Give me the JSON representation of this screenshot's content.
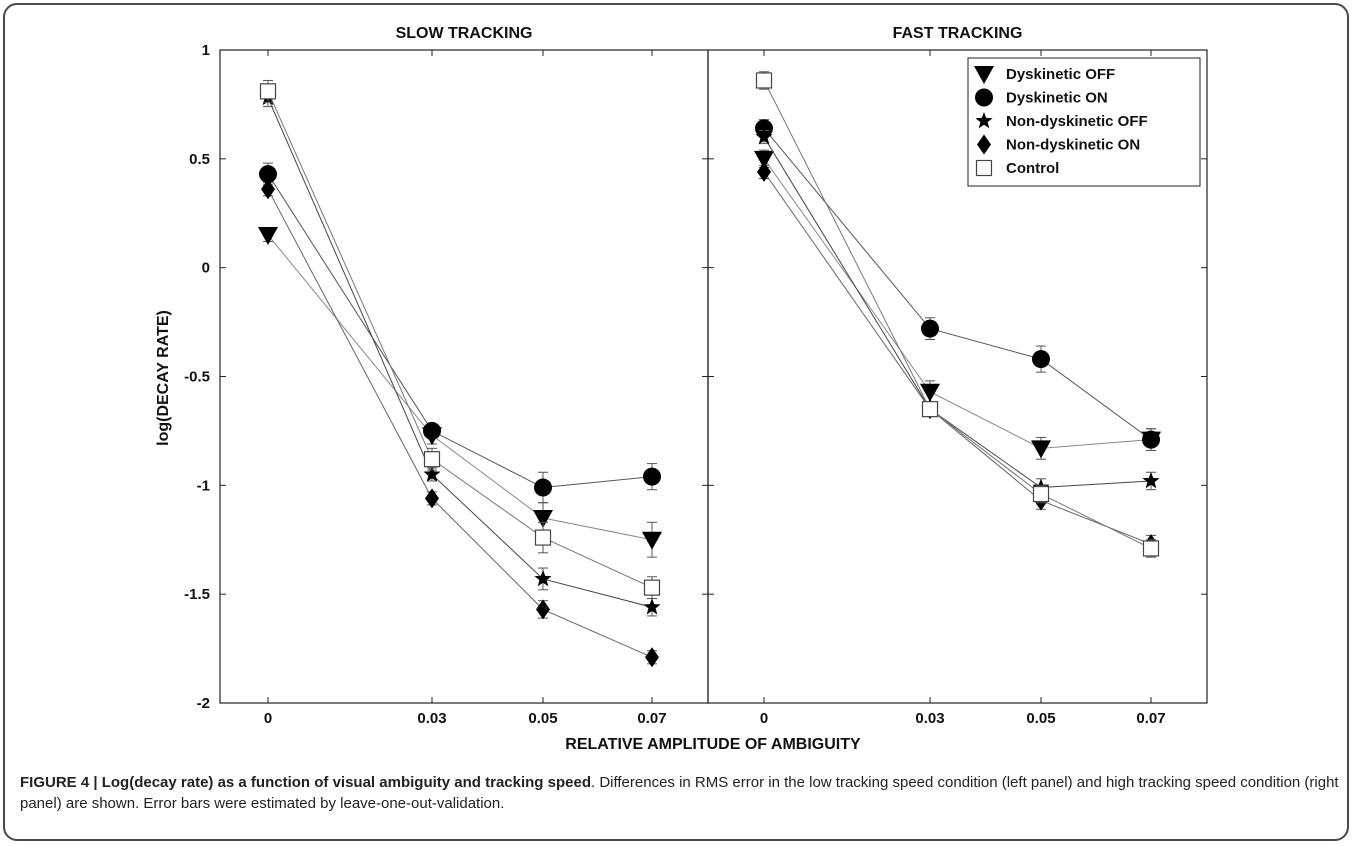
{
  "chart_data": {
    "type": "line",
    "x_ticks": [
      "0",
      "0.03",
      "0.05",
      "0.07"
    ],
    "ylabel": "log(DECAY RATE)",
    "xlabel": "RELATIVE AMPLITUDE OF AMBIGUITY",
    "ylim": [
      -2,
      1
    ],
    "y_ticks": [
      "1",
      "0.5",
      "0",
      "-0.5",
      "-1",
      "-1.5",
      "-2"
    ],
    "legend_position": "top-right",
    "grid": false,
    "panels": [
      {
        "title": "SLOW TRACKING",
        "series": [
          {
            "name": "Dyskinetic OFF",
            "marker": "triangle-down",
            "values": [
              0.15,
              -0.77,
              -1.15,
              -1.25
            ],
            "errors": [
              0.03,
              0.04,
              0.07,
              0.08
            ]
          },
          {
            "name": "Dyskinetic ON",
            "marker": "circle",
            "values": [
              0.43,
              -0.75,
              -1.01,
              -0.96
            ],
            "errors": [
              0.05,
              0.03,
              0.07,
              0.06
            ]
          },
          {
            "name": "Non-dyskinetic OFF",
            "marker": "star",
            "values": [
              0.78,
              -0.95,
              -1.43,
              -1.56
            ],
            "errors": [
              0.04,
              0.03,
              0.05,
              0.04
            ]
          },
          {
            "name": "Non-dyskinetic ON",
            "marker": "diamond",
            "values": [
              0.36,
              -1.06,
              -1.57,
              -1.79
            ],
            "errors": [
              0.03,
              0.03,
              0.04,
              0.03
            ]
          },
          {
            "name": "Control",
            "marker": "square-open",
            "values": [
              0.81,
              -0.88,
              -1.24,
              -1.47
            ],
            "errors": [
              0.05,
              0.05,
              0.07,
              0.05
            ]
          }
        ]
      },
      {
        "title": "FAST TRACKING",
        "series": [
          {
            "name": "Dyskinetic OFF",
            "marker": "triangle-down",
            "values": [
              0.5,
              -0.57,
              -0.83,
              -0.79
            ],
            "errors": [
              0.04,
              0.05,
              0.05,
              0.05
            ]
          },
          {
            "name": "Dyskinetic ON",
            "marker": "circle",
            "values": [
              0.64,
              -0.28,
              -0.42,
              -0.79
            ],
            "errors": [
              0.04,
              0.05,
              0.06,
              0.05
            ]
          },
          {
            "name": "Non-dyskinetic OFF",
            "marker": "star",
            "values": [
              0.6,
              -0.65,
              -1.01,
              -0.98
            ],
            "errors": [
              0.03,
              0.03,
              0.04,
              0.04
            ]
          },
          {
            "name": "Non-dyskinetic ON",
            "marker": "diamond",
            "values": [
              0.44,
              -0.65,
              -1.07,
              -1.27
            ],
            "errors": [
              0.03,
              0.03,
              0.04,
              0.04
            ]
          },
          {
            "name": "Control",
            "marker": "square-open",
            "values": [
              0.86,
              -0.65,
              -1.04,
              -1.29
            ],
            "errors": [
              0.04,
              0.03,
              0.04,
              0.04
            ]
          }
        ]
      }
    ]
  },
  "caption": {
    "label": "FIGURE 4 | Log(decay rate) as a function of visual ambiguity and tracking speed",
    "text": ". Differences in RMS error in the low tracking speed condition (left panel) and high tracking speed condition (right panel) are shown. Error bars were estimated by leave-one-out-validation."
  }
}
